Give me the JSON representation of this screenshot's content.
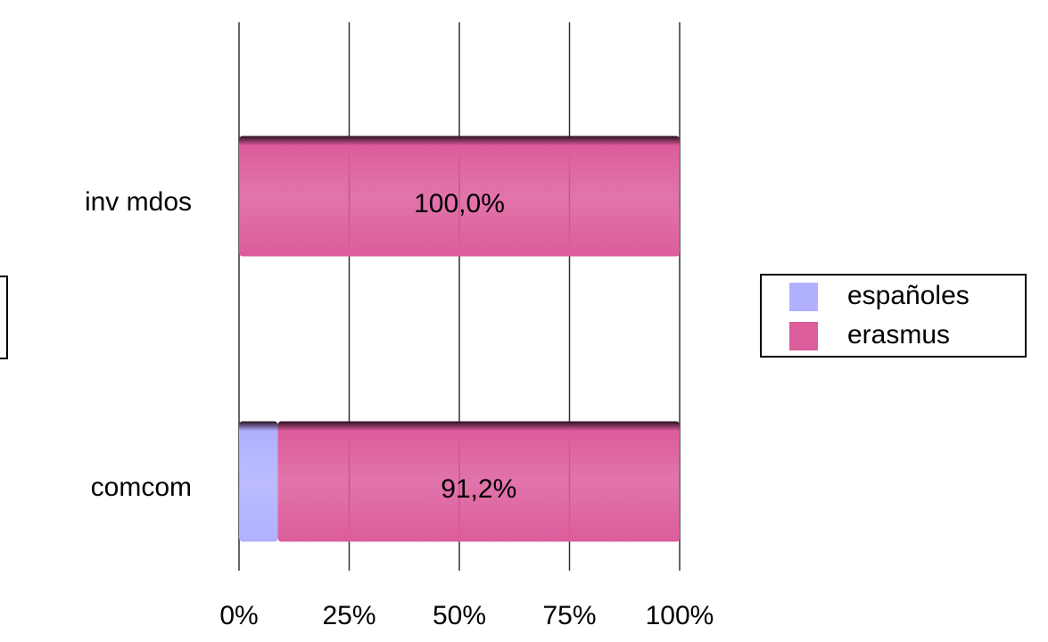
{
  "chart_data": {
    "type": "stacked-bar-horizontal",
    "categories": [
      "inv mdos",
      "comcom"
    ],
    "series": [
      {
        "name": "españoles",
        "color": "#b0b0ff",
        "values": [
          0,
          8.8
        ]
      },
      {
        "name": "erasmus",
        "color": "#dc5c9c",
        "values": [
          100,
          91.2
        ],
        "value_labels": [
          "100,0%",
          "91,2%"
        ]
      }
    ],
    "xlim": [
      0,
      100
    ],
    "xticks": [
      {
        "value": 0,
        "label": "0%"
      },
      {
        "value": 25,
        "label": "25%"
      },
      {
        "value": 50,
        "label": "50%"
      },
      {
        "value": 75,
        "label": "75%"
      },
      {
        "value": 100,
        "label": "100%"
      }
    ],
    "grid": true,
    "legend": "right"
  }
}
